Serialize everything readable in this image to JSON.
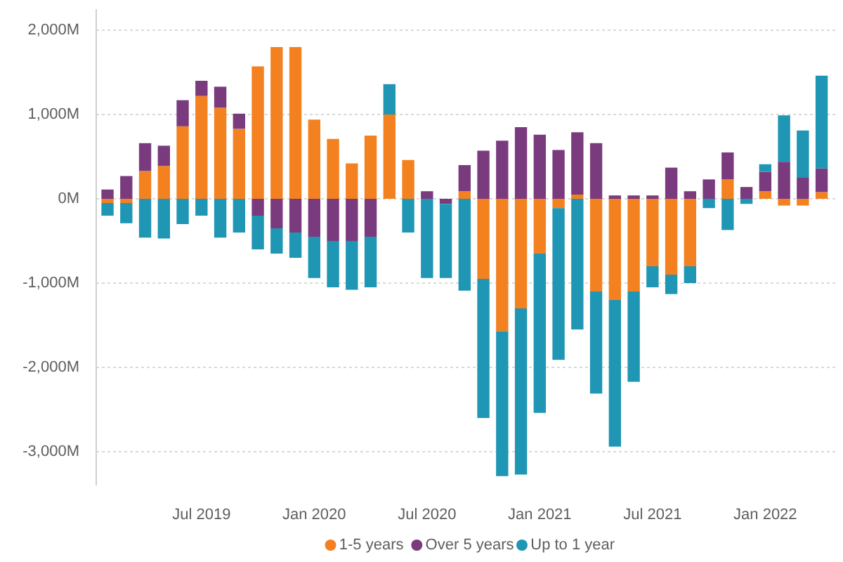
{
  "chart_data": {
    "type": "bar",
    "stacked": true,
    "categories": [
      null,
      null,
      null,
      null,
      null,
      "Jul 2019",
      null,
      null,
      null,
      null,
      null,
      "Jan 2020",
      null,
      null,
      null,
      null,
      null,
      "Jul 2020",
      null,
      null,
      null,
      null,
      null,
      "Jan 2021",
      null,
      null,
      null,
      null,
      null,
      "Jul 2021",
      null,
      null,
      null,
      null,
      null,
      "Jan 2022",
      null,
      null,
      null
    ],
    "series": [
      {
        "name": "1-5 years",
        "color": "#f4811f",
        "values": [
          -50,
          -50,
          330,
          390,
          860,
          1220,
          1080,
          830,
          1570,
          1800,
          1800,
          940,
          710,
          420,
          750,
          1000,
          460,
          null,
          null,
          90,
          -950,
          -1570,
          -1300,
          -650,
          -110,
          50,
          -1100,
          -1200,
          -1100,
          -800,
          -900,
          -800,
          null,
          230,
          null,
          90,
          -80,
          -80,
          80
        ]
      },
      {
        "name": "Over 5 years",
        "color": "#7a3b7e",
        "values": [
          110,
          270,
          330,
          240,
          310,
          180,
          250,
          180,
          -200,
          -350,
          -400,
          -450,
          -500,
          -500,
          -450,
          null,
          null,
          90,
          -60,
          310,
          570,
          690,
          850,
          760,
          580,
          740,
          660,
          40,
          40,
          40,
          370,
          90,
          230,
          320,
          140,
          230,
          440,
          250,
          280
        ]
      },
      {
        "name": "Up to 1 year",
        "color": "#1f96b4",
        "values": [
          -150,
          -240,
          -460,
          -470,
          -300,
          -200,
          -460,
          -400,
          -400,
          -300,
          -300,
          -490,
          -550,
          -580,
          -600,
          360,
          -400,
          -940,
          -880,
          -1090,
          -1650,
          -1720,
          -1970,
          -1890,
          -1800,
          -1550,
          -1210,
          -1740,
          -1070,
          -250,
          -230,
          -200,
          -110,
          -370,
          -60,
          90,
          550,
          560,
          1100
        ]
      }
    ],
    "ylim": [
      -3400,
      2250
    ],
    "yticks": [
      {
        "value": 2000,
        "label": "2,000M"
      },
      {
        "value": 1000,
        "label": "1,000M"
      },
      {
        "value": 0,
        "label": "0M"
      },
      {
        "value": -1000,
        "label": "-1,000M"
      },
      {
        "value": -2000,
        "label": "-2,000M"
      },
      {
        "value": -3000,
        "label": "-3,000M"
      }
    ],
    "grid": "y",
    "legend": "bottom"
  }
}
